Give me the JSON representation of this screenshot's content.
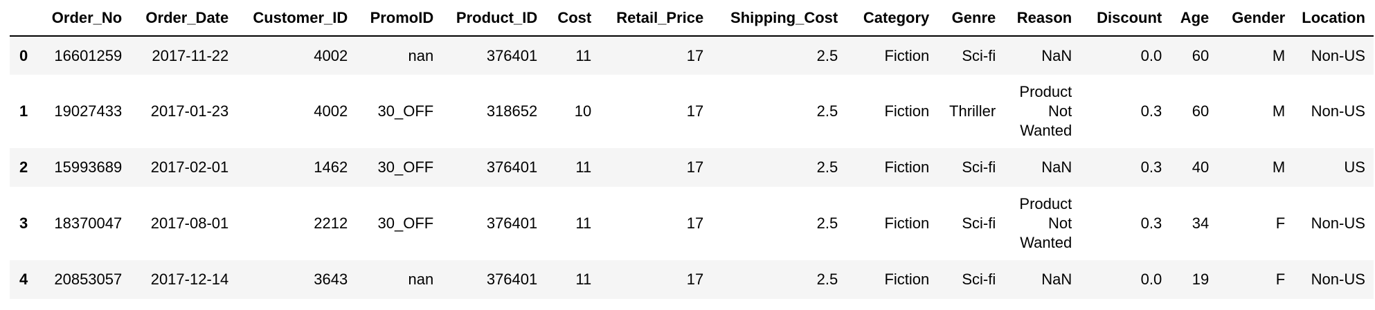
{
  "table": {
    "columns": [
      "",
      "Order_No",
      "Order_Date",
      "Customer_ID",
      "PromoID",
      "Product_ID",
      "Cost",
      "Retail_Price",
      "Shipping_Cost",
      "Category",
      "Genre",
      "Reason",
      "Discount",
      "Age",
      "Gender",
      "Location"
    ],
    "rows": [
      {
        "index": "0",
        "Order_No": "16601259",
        "Order_Date": "2017-11-22",
        "Customer_ID": "4002",
        "PromoID": "nan",
        "Product_ID": "376401",
        "Cost": "11",
        "Retail_Price": "17",
        "Shipping_Cost": "2.5",
        "Category": "Fiction",
        "Genre": "Sci-fi",
        "Reason": [
          "NaN"
        ],
        "Discount": "0.0",
        "Age": "60",
        "Gender": "M",
        "Location": "Non-US"
      },
      {
        "index": "1",
        "Order_No": "19027433",
        "Order_Date": "2017-01-23",
        "Customer_ID": "4002",
        "PromoID": "30_OFF",
        "Product_ID": "318652",
        "Cost": "10",
        "Retail_Price": "17",
        "Shipping_Cost": "2.5",
        "Category": "Fiction",
        "Genre": "Thriller",
        "Reason": [
          "Product",
          "Not",
          "Wanted"
        ],
        "Discount": "0.3",
        "Age": "60",
        "Gender": "M",
        "Location": "Non-US"
      },
      {
        "index": "2",
        "Order_No": "15993689",
        "Order_Date": "2017-02-01",
        "Customer_ID": "1462",
        "PromoID": "30_OFF",
        "Product_ID": "376401",
        "Cost": "11",
        "Retail_Price": "17",
        "Shipping_Cost": "2.5",
        "Category": "Fiction",
        "Genre": "Sci-fi",
        "Reason": [
          "NaN"
        ],
        "Discount": "0.3",
        "Age": "40",
        "Gender": "M",
        "Location": "US"
      },
      {
        "index": "3",
        "Order_No": "18370047",
        "Order_Date": "2017-08-01",
        "Customer_ID": "2212",
        "PromoID": "30_OFF",
        "Product_ID": "376401",
        "Cost": "11",
        "Retail_Price": "17",
        "Shipping_Cost": "2.5",
        "Category": "Fiction",
        "Genre": "Sci-fi",
        "Reason": [
          "Product",
          "Not",
          "Wanted"
        ],
        "Discount": "0.3",
        "Age": "34",
        "Gender": "F",
        "Location": "Non-US"
      },
      {
        "index": "4",
        "Order_No": "20853057",
        "Order_Date": "2017-12-14",
        "Customer_ID": "3643",
        "PromoID": "nan",
        "Product_ID": "376401",
        "Cost": "11",
        "Retail_Price": "17",
        "Shipping_Cost": "2.5",
        "Category": "Fiction",
        "Genre": "Sci-fi",
        "Reason": [
          "NaN"
        ],
        "Discount": "0.0",
        "Age": "19",
        "Gender": "F",
        "Location": "Non-US"
      }
    ]
  }
}
